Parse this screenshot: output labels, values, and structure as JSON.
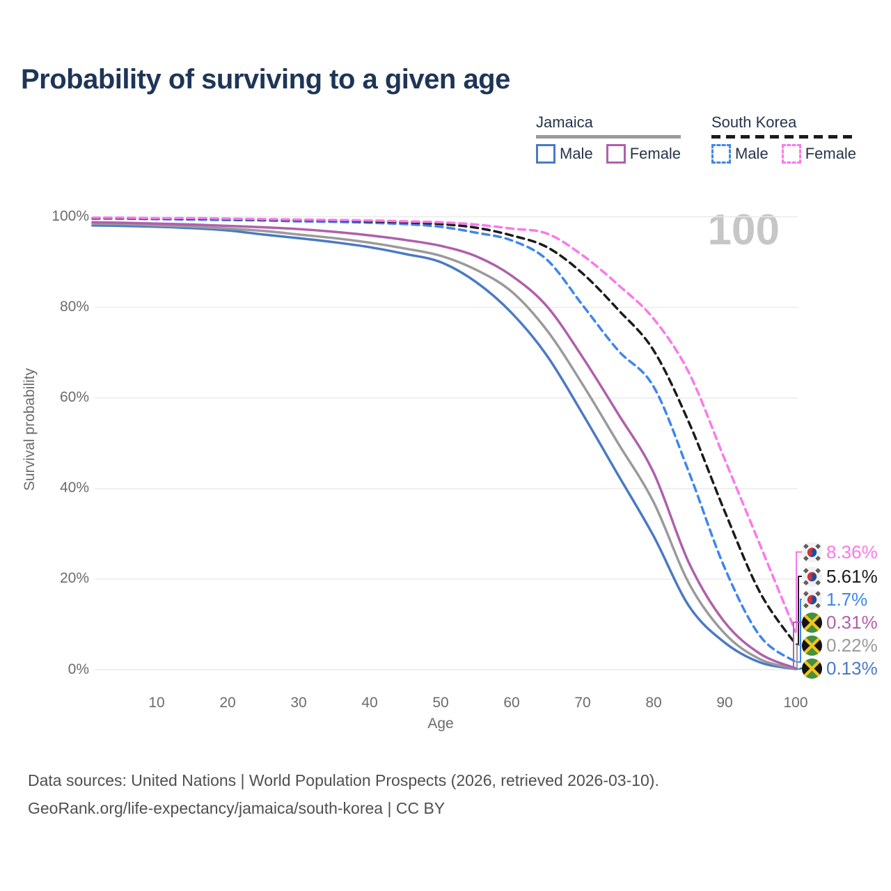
{
  "header": {
    "title": "Probability of surviving to a given age"
  },
  "legend": {
    "groups": [
      {
        "label": "Jamaica",
        "line_style": "solid",
        "line_color": "#9a9a9a",
        "items": [
          {
            "label": "Male",
            "color": "#4a79c5"
          },
          {
            "label": "Female",
            "color": "#b05fac"
          }
        ]
      },
      {
        "label": "South Korea",
        "line_style": "dashed",
        "line_color": "#1b1b1b",
        "items": [
          {
            "label": "Male",
            "color": "#3d86ec"
          },
          {
            "label": "Female",
            "color": "#fb78ea"
          }
        ]
      }
    ]
  },
  "chart_data": {
    "type": "line",
    "title": "Probability of surviving to a given age",
    "xlabel": "Age",
    "ylabel": "Survival probability",
    "x_ticks": [
      10,
      20,
      30,
      40,
      50,
      60,
      70,
      80,
      90,
      100
    ],
    "y_ticks": [
      "100%",
      "80%",
      "60%",
      "40%",
      "20%",
      "0%"
    ],
    "y_tick_values": [
      100,
      80,
      60,
      40,
      20,
      0
    ],
    "xlim": [
      1,
      100
    ],
    "ylim": [
      0,
      100
    ],
    "grid": "horizontal-only",
    "legend_position": "top-right",
    "age_counter": "100",
    "ages": [
      1,
      5,
      10,
      15,
      20,
      25,
      30,
      35,
      40,
      45,
      50,
      55,
      60,
      65,
      70,
      75,
      80,
      85,
      90,
      95,
      100
    ],
    "series": [
      {
        "name": "South Korea Female",
        "country": "South Korea",
        "sex": "Female",
        "color": "#fb78ea",
        "dash": true,
        "end_label": "8.36%",
        "values": [
          99.8,
          99.8,
          99.7,
          99.7,
          99.6,
          99.5,
          99.4,
          99.3,
          99.2,
          99.0,
          98.8,
          98.3,
          97.4,
          96.3,
          91.5,
          85.0,
          77.5,
          65.5,
          46.5,
          27.5,
          8.36
        ]
      },
      {
        "name": "South Korea Both sexes",
        "country": "South Korea",
        "sex": "Both",
        "color": "#1b1b1b",
        "dash": true,
        "end_label": "5.61%",
        "values": [
          99.7,
          99.7,
          99.6,
          99.6,
          99.5,
          99.4,
          99.3,
          99.2,
          99.0,
          98.8,
          98.4,
          97.6,
          95.9,
          93.3,
          87.5,
          79.5,
          70.5,
          54.5,
          35.0,
          17.0,
          5.61
        ]
      },
      {
        "name": "South Korea Male",
        "country": "South Korea",
        "sex": "Male",
        "color": "#3d86ec",
        "dash": true,
        "end_label": "1.7%",
        "values": [
          99.6,
          99.6,
          99.5,
          99.4,
          99.3,
          99.2,
          99.0,
          98.9,
          98.7,
          98.4,
          97.8,
          96.5,
          94.8,
          90.5,
          80.5,
          70.5,
          62.5,
          43.5,
          22.5,
          7.4,
          1.7
        ]
      },
      {
        "name": "Jamaica Female",
        "country": "Jamaica",
        "sex": "Female",
        "color": "#b05fac",
        "dash": false,
        "end_label": "0.31%",
        "values": [
          98.8,
          98.7,
          98.5,
          98.3,
          98.0,
          97.7,
          97.3,
          96.7,
          95.9,
          94.9,
          93.6,
          91.3,
          87.0,
          80.2,
          69.0,
          56.5,
          43.5,
          23.5,
          10.5,
          3.5,
          0.31
        ]
      },
      {
        "name": "Jamaica Both sexes",
        "country": "Jamaica",
        "sex": "Both",
        "color": "#9a9a9a",
        "dash": false,
        "end_label": "0.22%",
        "values": [
          98.5,
          98.4,
          98.1,
          97.8,
          97.4,
          96.9,
          96.1,
          95.3,
          94.3,
          93.0,
          91.4,
          88.3,
          83.5,
          74.9,
          63.0,
          50.0,
          37.0,
          19.0,
          8.0,
          2.3,
          0.22
        ]
      },
      {
        "name": "Jamaica Male",
        "country": "Jamaica",
        "sex": "Male",
        "color": "#4a79c5",
        "dash": false,
        "end_label": "0.13%",
        "values": [
          98.1,
          98.0,
          97.8,
          97.5,
          97.0,
          96.1,
          95.3,
          94.4,
          93.3,
          91.8,
          90.0,
          85.6,
          78.8,
          69.3,
          56.5,
          43.0,
          29.5,
          14.0,
          6.0,
          1.6,
          0.13
        ]
      }
    ]
  },
  "footer": {
    "line1": "Data sources: United Nations | World Population Prospects (2026, retrieved 2026-03-10).",
    "line2": "GeoRank.org/life-expectancy/jamaica/south-korea | CC BY"
  }
}
